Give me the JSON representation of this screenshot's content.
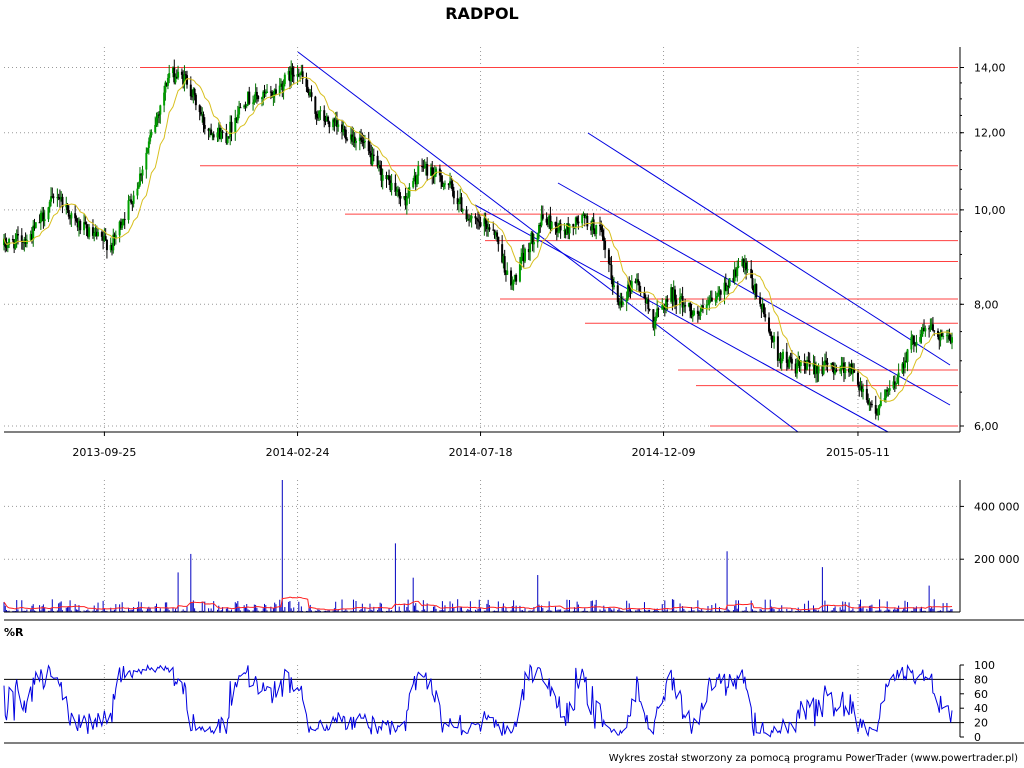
{
  "chart_data": [
    {
      "type": "candlestick",
      "title": "RADPOL",
      "y_scale": "log",
      "ylim": [
        6.0,
        14.8
      ],
      "y_ticks": [
        {
          "label": "14,00",
          "value": 14
        },
        {
          "label": "12,00",
          "value": 12
        },
        {
          "label": "10,00",
          "value": 10
        },
        {
          "label": "8,00",
          "value": 8
        },
        {
          "label": "6,00",
          "value": 6
        }
      ],
      "x_ticks": [
        "2013-09-25",
        "2014-02-24",
        "2014-07-18",
        "2014-12-09",
        "2015-05-11"
      ],
      "price_key_points": [
        {
          "date": "2013-07-08",
          "close": 9.2
        },
        {
          "date": "2013-07-29",
          "close": 9.4
        },
        {
          "date": "2013-08-19",
          "close": 10.4
        },
        {
          "date": "2013-09-02",
          "close": 9.7
        },
        {
          "date": "2013-09-16",
          "close": 9.4
        },
        {
          "date": "2013-10-01",
          "close": 9.2
        },
        {
          "date": "2013-10-21",
          "close": 10.6
        },
        {
          "date": "2013-11-05",
          "close": 12.4
        },
        {
          "date": "2013-11-15",
          "close": 13.8
        },
        {
          "date": "2013-11-29",
          "close": 13.6
        },
        {
          "date": "2013-12-13",
          "close": 12.2
        },
        {
          "date": "2013-12-30",
          "close": 11.9
        },
        {
          "date": "2014-01-13",
          "close": 13.0
        },
        {
          "date": "2014-02-03",
          "close": 13.1
        },
        {
          "date": "2014-02-24",
          "close": 14.0
        },
        {
          "date": "2014-03-10",
          "close": 12.6
        },
        {
          "date": "2014-03-24",
          "close": 12.2
        },
        {
          "date": "2014-04-14",
          "close": 11.8
        },
        {
          "date": "2014-04-28",
          "close": 11.0
        },
        {
          "date": "2014-05-19",
          "close": 10.2
        },
        {
          "date": "2014-06-02",
          "close": 11.1
        },
        {
          "date": "2014-06-23",
          "close": 10.6
        },
        {
          "date": "2014-07-11",
          "close": 9.7
        },
        {
          "date": "2014-07-28",
          "close": 9.6
        },
        {
          "date": "2014-08-11",
          "close": 8.3
        },
        {
          "date": "2014-08-25",
          "close": 9.2
        },
        {
          "date": "2014-09-05",
          "close": 9.8
        },
        {
          "date": "2014-09-22",
          "close": 9.5
        },
        {
          "date": "2014-10-06",
          "close": 9.8
        },
        {
          "date": "2014-10-20",
          "close": 9.5
        },
        {
          "date": "2014-11-03",
          "close": 8.0
        },
        {
          "date": "2014-11-17",
          "close": 8.5
        },
        {
          "date": "2014-12-01",
          "close": 7.7
        },
        {
          "date": "2014-12-15",
          "close": 8.2
        },
        {
          "date": "2015-01-05",
          "close": 7.8
        },
        {
          "date": "2015-01-19",
          "close": 8.1
        },
        {
          "date": "2015-02-09",
          "close": 8.8
        },
        {
          "date": "2015-02-20",
          "close": 8.2
        },
        {
          "date": "2015-03-09",
          "close": 7.1
        },
        {
          "date": "2015-03-23",
          "close": 6.9
        },
        {
          "date": "2015-04-13",
          "close": 6.9
        },
        {
          "date": "2015-05-04",
          "close": 6.9
        },
        {
          "date": "2015-05-25",
          "close": 6.2
        },
        {
          "date": "2015-06-08",
          "close": 6.6
        },
        {
          "date": "2015-06-22",
          "close": 7.3
        },
        {
          "date": "2015-07-06",
          "close": 7.6
        },
        {
          "date": "2015-07-24",
          "close": 7.3
        }
      ],
      "moving_average_color": "#d8c020",
      "price_color": "#006000",
      "horizontal_levels": [
        14.0,
        11.1,
        9.9,
        9.3,
        8.85,
        8.1,
        7.65,
        6.85,
        6.6,
        6.0
      ],
      "levels_color": "#ff4040",
      "trend_channels_color": "#0000e0",
      "grid": true
    },
    {
      "type": "bar",
      "title": "",
      "y_ticks": [
        {
          "label": "400 000",
          "value": 400000
        },
        {
          "label": "200 000",
          "value": 200000
        }
      ],
      "ylim": [
        0,
        500000
      ],
      "volume_spikes": [
        {
          "date": "2014-02-12",
          "value": 500000
        },
        {
          "date": "2014-05-12",
          "value": 260000
        },
        {
          "date": "2015-01-28",
          "value": 230000
        },
        {
          "date": "2013-12-02",
          "value": 220000
        },
        {
          "date": "2013-11-22",
          "value": 150000
        },
        {
          "date": "2014-05-26",
          "value": 130000
        },
        {
          "date": "2014-09-01",
          "value": 140000
        },
        {
          "date": "2015-04-13",
          "value": 170000
        },
        {
          "date": "2015-07-06",
          "value": 100000
        }
      ],
      "volume_color": "#0000c0",
      "average_color": "#ff2020"
    },
    {
      "type": "line",
      "title": "%R",
      "ylim": [
        0,
        100
      ],
      "y_ticks": [
        {
          "label": "100",
          "value": 100
        },
        {
          "label": "80",
          "value": 80
        },
        {
          "label": "60",
          "value": 60
        },
        {
          "label": "40",
          "value": 40
        },
        {
          "label": "20",
          "value": 20
        },
        {
          "label": "0",
          "value": 0
        }
      ],
      "reference_lines": [
        80,
        20
      ],
      "line_color": "#0000e0"
    }
  ],
  "footer": "Wykres został stworzony za pomocą programu PowerTrader (www.powertrader.pl)"
}
